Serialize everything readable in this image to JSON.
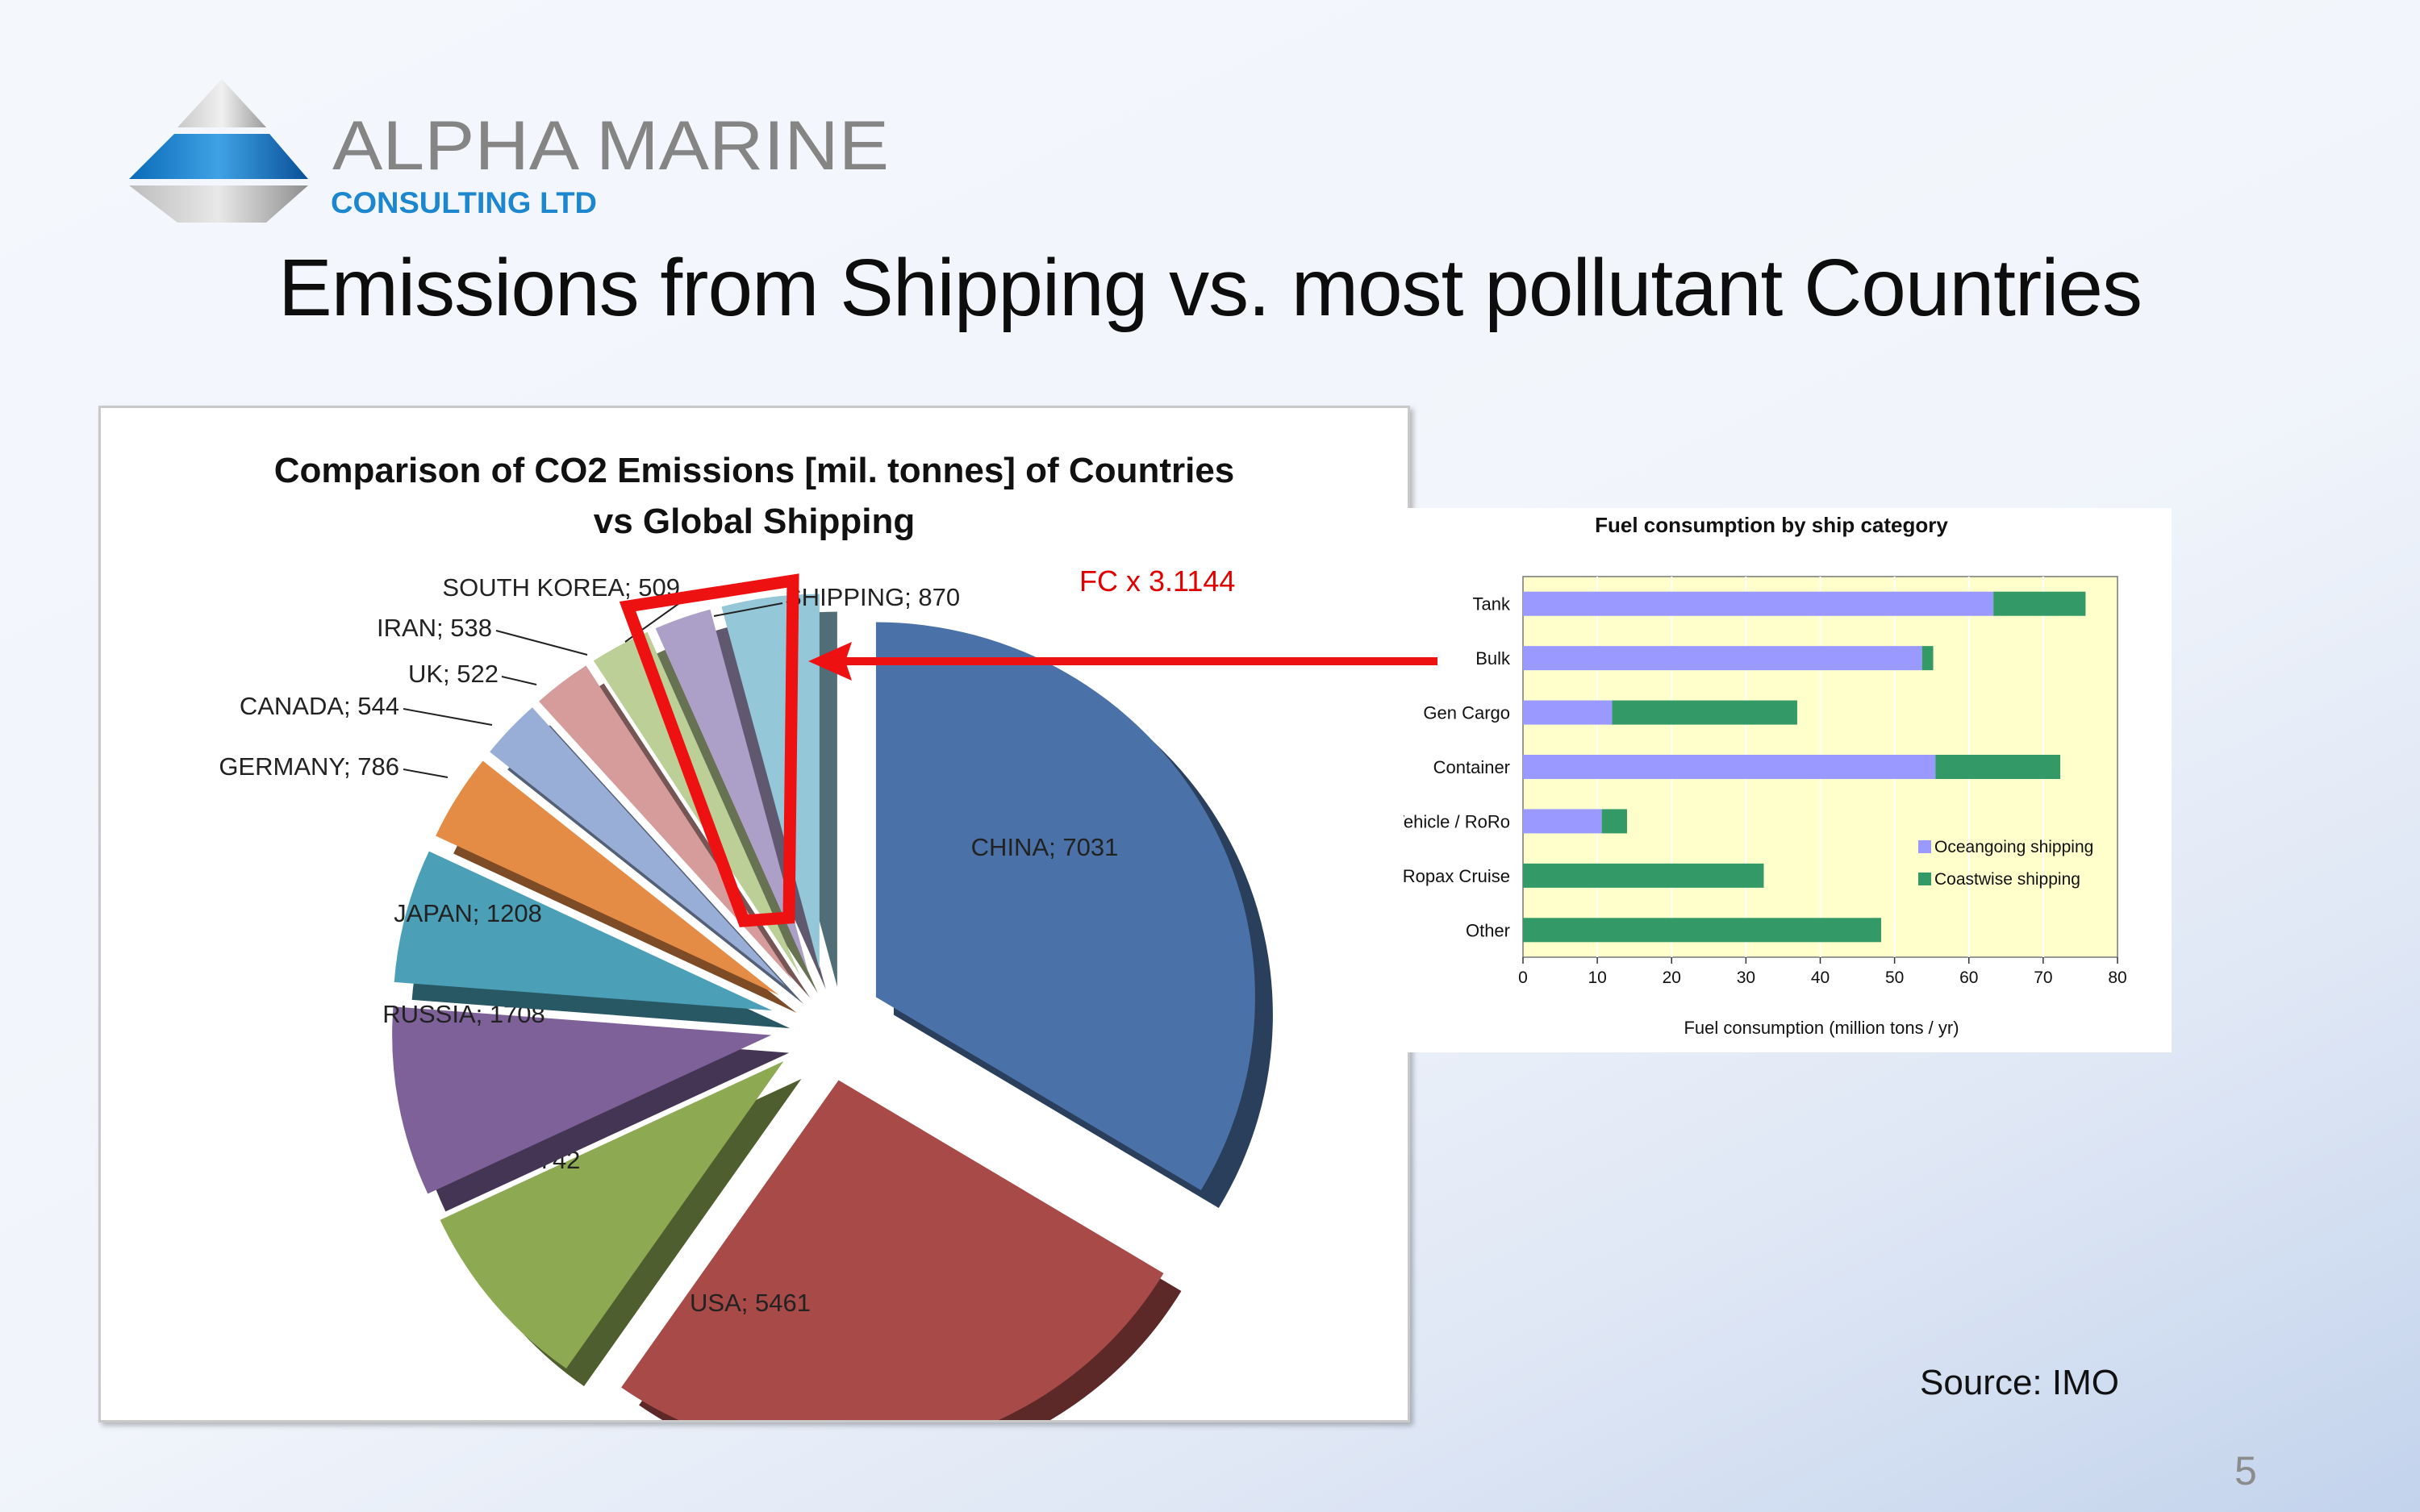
{
  "logo": {
    "name": "ALPHA MARINE",
    "subtitle": "CONSULTING LTD"
  },
  "slide": {
    "title": "Emissions from Shipping vs. most pollutant Countries",
    "source": "Source: IMO",
    "page_number": "5",
    "annotation": "FC x 3.1144"
  },
  "colors": {
    "arrow": "#ee1111",
    "ocean": "#9999ff",
    "coast": "#339966",
    "plot_bg": "#ffffcc"
  },
  "chart_data": [
    {
      "type": "pie",
      "title": "Comparison of CO2 Emissions [mil. tonnes] of Countries",
      "subtitle": "vs Global Shipping",
      "slices": [
        {
          "name": "CHINA",
          "value": 7031,
          "label": "CHINA; 7031",
          "color": "#4a72a8"
        },
        {
          "name": "USA",
          "value": 5461,
          "label": "USA; 5461",
          "color": "#a74a48"
        },
        {
          "name": "INDIA",
          "value": 1742,
          "label": "INDIA; 1742",
          "color": "#8daa53"
        },
        {
          "name": "RUSSIA",
          "value": 1708,
          "label": "RUSSIA; 1708",
          "color": "#7e6199"
        },
        {
          "name": "JAPAN",
          "value": 1208,
          "label": "JAPAN; 1208",
          "color": "#4ba0b8"
        },
        {
          "name": "GERMANY",
          "value": 786,
          "label": "GERMANY; 786",
          "color": "#e48b45"
        },
        {
          "name": "CANADA",
          "value": 544,
          "label": "CANADA; 544",
          "color": "#98aed6"
        },
        {
          "name": "UK",
          "value": 522,
          "label": "UK; 522",
          "color": "#d69c9b"
        },
        {
          "name": "IRAN",
          "value": 538,
          "label": "IRAN; 538",
          "color": "#bccf97"
        },
        {
          "name": "SOUTH KOREA",
          "value": 509,
          "label": "SOUTH KOREA; 509",
          "color": "#aca0c8"
        },
        {
          "name": "SHIPPING",
          "value": 870,
          "label": "SHIPPING; 870",
          "color": "#94c8d8"
        }
      ]
    },
    {
      "type": "bar",
      "orientation": "horizontal",
      "stacked": true,
      "title": "Fuel consumption by ship category",
      "xlabel": "Fuel consumption (million tons / yr)",
      "xlim": [
        0,
        80
      ],
      "xticks": [
        0,
        10,
        20,
        30,
        40,
        50,
        60,
        70,
        80
      ],
      "grid": true,
      "legend_position": "right",
      "categories": [
        "Tank",
        "Bulk",
        "Gen Cargo",
        "Container",
        "Vehicle / RoRo",
        "Ropax Cruise",
        "Other"
      ],
      "series": [
        {
          "name": "Oceangoing shipping",
          "color": "#9999ff",
          "values": [
            63.3,
            53.7,
            12,
            55.5,
            10.6,
            0,
            0
          ]
        },
        {
          "name": "Coastwise shipping",
          "color": "#339966",
          "values": [
            12.4,
            1.5,
            24.9,
            16.8,
            3.4,
            32.4,
            48.2
          ]
        }
      ]
    }
  ]
}
